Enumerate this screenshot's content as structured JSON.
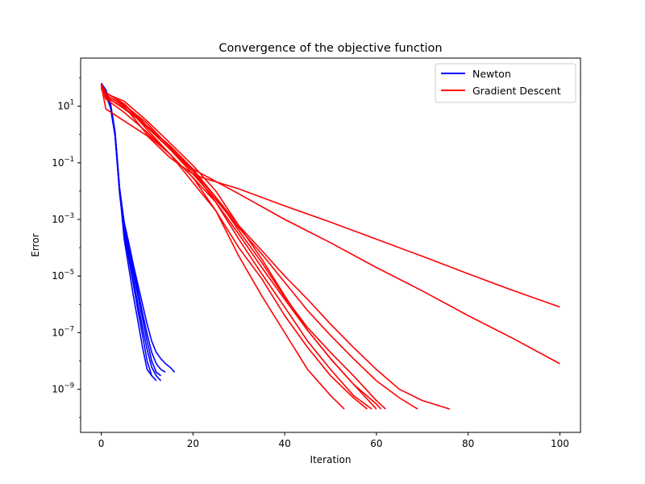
{
  "chart_data": {
    "type": "line",
    "title": "Convergence of the objective function",
    "xlabel": "Iteration",
    "ylabel": "Error",
    "yscale": "log",
    "xlim": [
      -4.5,
      104.5
    ],
    "ylim": [
      3e-11,
      500
    ],
    "xticks": [
      0,
      20,
      40,
      60,
      80,
      100
    ],
    "xtick_labels": [
      "0",
      "20",
      "40",
      "60",
      "80",
      "100"
    ],
    "yticks": [
      1e-09,
      1e-07,
      1e-05,
      0.001,
      0.1,
      10
    ],
    "ytick_bases": [
      "10",
      "10",
      "10",
      "10",
      "10",
      "10"
    ],
    "ytick_exponents": [
      "−9",
      "−7",
      "−5",
      "−3",
      "−1",
      "1"
    ],
    "grid": false,
    "legend_position": "top-right",
    "legend": [
      {
        "label": "Newton",
        "color": "#0000ff"
      },
      {
        "label": "Gradient Descent",
        "color": "#ff0000"
      }
    ],
    "series": [
      {
        "group": "Newton",
        "color": "#0000ff",
        "x": [
          0,
          1,
          2,
          3,
          4,
          5,
          6,
          7,
          8,
          9,
          10,
          11
        ],
        "y": [
          50,
          30,
          10,
          1,
          0.01,
          0.0002,
          2e-05,
          2e-06,
          2.5e-07,
          3e-08,
          5e-09,
          3e-09
        ]
      },
      {
        "group": "Newton",
        "color": "#0000ff",
        "x": [
          0,
          1,
          2,
          3,
          4,
          5,
          6,
          7,
          8,
          9,
          10,
          11,
          12
        ],
        "y": [
          60,
          35,
          12,
          1.2,
          0.012,
          0.0003,
          4e-05,
          5e-06,
          6e-07,
          8e-08,
          1e-08,
          3e-09,
          2e-09
        ]
      },
      {
        "group": "Newton",
        "color": "#0000ff",
        "x": [
          0,
          1,
          2,
          3,
          4,
          5,
          6,
          7,
          8,
          9,
          10,
          11,
          12,
          13
        ],
        "y": [
          40,
          25,
          9,
          0.9,
          0.008,
          0.0004,
          5e-05,
          7e-06,
          1e-06,
          1.5e-07,
          2.5e-08,
          6e-09,
          3e-09,
          2e-09
        ]
      },
      {
        "group": "Newton",
        "color": "#0000ff",
        "x": [
          0,
          1,
          2,
          3,
          4,
          5,
          6,
          7,
          8,
          9,
          10,
          11,
          12,
          13
        ],
        "y": [
          55,
          32,
          11,
          1.1,
          0.01,
          0.0005,
          8e-05,
          1.2e-05,
          2e-06,
          3e-07,
          5e-08,
          1e-08,
          4e-09,
          3e-09
        ]
      },
      {
        "group": "Newton",
        "color": "#0000ff",
        "x": [
          0,
          1,
          2,
          3,
          4,
          5,
          6,
          7,
          8,
          9,
          10,
          11,
          12,
          13,
          14
        ],
        "y": [
          45,
          28,
          10,
          1,
          0.01,
          0.0006,
          0.0001,
          1.8e-05,
          3e-06,
          5e-07,
          9e-08,
          2e-08,
          8e-09,
          5e-09,
          4e-09
        ]
      },
      {
        "group": "Newton",
        "color": "#0000ff",
        "x": [
          0,
          1,
          2,
          3,
          4,
          5,
          6,
          7,
          8,
          9,
          10,
          11,
          12,
          13,
          14,
          15,
          16
        ],
        "y": [
          65,
          38,
          13,
          1.3,
          0.013,
          0.0008,
          0.00015,
          2.5e-05,
          5e-06,
          1e-06,
          2e-07,
          5e-08,
          2e-08,
          1.2e-08,
          8e-09,
          6e-09,
          4e-09
        ]
      },
      {
        "group": "Gradient Descent",
        "color": "#ff0000",
        "x": [
          0,
          1,
          5,
          10,
          15,
          20,
          25,
          30,
          35,
          40,
          45,
          50,
          53
        ],
        "y": [
          60,
          30,
          12,
          1.5,
          0.2,
          0.03,
          0.002,
          5e-05,
          2e-06,
          1e-07,
          5e-09,
          6e-10,
          2e-10
        ]
      },
      {
        "group": "Gradient Descent",
        "color": "#ff0000",
        "x": [
          0,
          1,
          5,
          10,
          15,
          20,
          25,
          30,
          35,
          40,
          45,
          50,
          55,
          58
        ],
        "y": [
          55,
          25,
          10,
          1,
          0.2,
          0.02,
          0.002,
          0.0001,
          8e-06,
          4e-07,
          3e-08,
          3e-09,
          5e-10,
          2e-10
        ]
      },
      {
        "group": "Gradient Descent",
        "color": "#ff0000",
        "x": [
          0,
          1,
          5,
          10,
          15,
          20,
          25,
          30,
          35,
          40,
          45,
          50,
          55,
          59
        ],
        "y": [
          50,
          22,
          8,
          2,
          0.3,
          0.05,
          0.004,
          0.0002,
          1.2e-05,
          8e-07,
          5e-08,
          5e-09,
          6e-10,
          2e-10
        ]
      },
      {
        "group": "Gradient Descent",
        "color": "#ff0000",
        "x": [
          0,
          1,
          5,
          10,
          15,
          20,
          25,
          30,
          35,
          40,
          45,
          50,
          55,
          60,
          61
        ],
        "y": [
          58,
          28,
          15,
          3,
          0.5,
          0.08,
          0.01,
          0.0006,
          4e-05,
          2e-06,
          1.2e-07,
          1.2e-08,
          1.5e-09,
          3e-10,
          2e-10
        ]
      },
      {
        "group": "Gradient Descent",
        "color": "#ff0000",
        "x": [
          0,
          1,
          5,
          10,
          15,
          20,
          25,
          30,
          35,
          40,
          45,
          50,
          55,
          60,
          62
        ],
        "y": [
          62,
          30,
          12,
          2,
          0.4,
          0.06,
          0.006,
          0.0004,
          3e-05,
          1.8e-06,
          1.5e-07,
          2e-08,
          3e-09,
          4e-10,
          2e-10
        ]
      },
      {
        "group": "Gradient Descent",
        "color": "#ff0000",
        "x": [
          0,
          1,
          5,
          10,
          15,
          20,
          25,
          30,
          35,
          40,
          45,
          50,
          55,
          60,
          65,
          69
        ],
        "y": [
          48,
          20,
          9,
          1.8,
          0.3,
          0.04,
          0.005,
          0.0005,
          6e-05,
          6e-06,
          6e-07,
          8e-08,
          1.2e-08,
          2e-09,
          5e-10,
          2e-10
        ]
      },
      {
        "group": "Gradient Descent",
        "color": "#ff0000",
        "x": [
          0,
          1,
          5,
          10,
          15,
          20,
          25,
          30,
          35,
          40,
          45,
          50,
          55,
          60,
          65,
          70,
          76
        ],
        "y": [
          52,
          24,
          11,
          2.5,
          0.35,
          0.05,
          0.006,
          0.0006,
          8e-05,
          1e-05,
          1.5e-06,
          2e-07,
          3e-08,
          5e-09,
          1e-09,
          4e-10,
          2e-10
        ]
      },
      {
        "group": "Gradient Descent",
        "color": "#ff0000",
        "x": [
          0,
          1,
          5,
          10,
          15,
          20,
          25,
          30,
          35,
          40,
          45,
          50,
          55,
          60
        ],
        "y": [
          45,
          18,
          6,
          1.2,
          0.2,
          0.03,
          0.004,
          0.0003,
          2e-05,
          1.5e-06,
          1.2e-07,
          1.2e-08,
          1.5e-09,
          2e-10
        ]
      },
      {
        "group": "Gradient Descent",
        "color": "#ff0000",
        "x": [
          0,
          1,
          5,
          10,
          15,
          20,
          22,
          30,
          40,
          50,
          60,
          70,
          80,
          90,
          100
        ],
        "y": [
          60,
          30,
          12,
          2,
          0.3,
          0.06,
          0.04,
          0.008,
          0.001,
          0.00015,
          2e-05,
          3e-06,
          4e-07,
          6e-08,
          8e-09
        ]
      },
      {
        "group": "Gradient Descent",
        "color": "#ff0000",
        "x": [
          0,
          1,
          5,
          10,
          15,
          20,
          22,
          30,
          40,
          50,
          60,
          70,
          80,
          90,
          100
        ],
        "y": [
          55,
          8,
          3,
          0.9,
          0.15,
          0.04,
          0.03,
          0.012,
          0.003,
          0.0008,
          0.0002,
          5e-05,
          1.2e-05,
          3e-06,
          8e-07
        ]
      }
    ]
  }
}
